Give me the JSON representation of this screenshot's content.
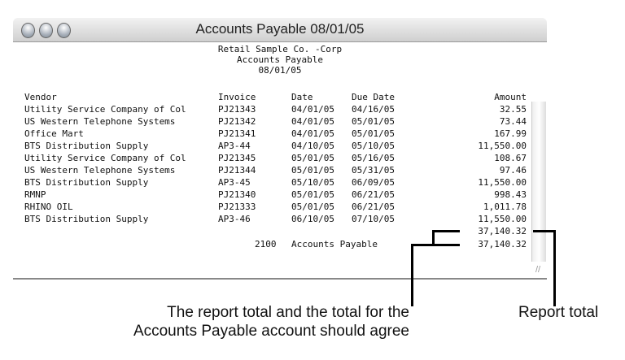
{
  "window": {
    "title": "Accounts Payable 08/01/05"
  },
  "report": {
    "company": "Retail Sample Co. -Corp",
    "name": "Accounts Payable",
    "date": "08/01/05"
  },
  "columns": [
    "Vendor",
    "Invoice",
    "Date",
    "Due Date",
    "Amount"
  ],
  "rows": [
    [
      "Utility Service Company of Col",
      "PJ21343",
      "04/01/05",
      "04/16/05",
      "32.55"
    ],
    [
      "US Western Telephone Systems",
      "PJ21342",
      "04/01/05",
      "05/01/05",
      "73.44"
    ],
    [
      "Office Mart",
      "PJ21341",
      "04/01/05",
      "05/01/05",
      "167.99"
    ],
    [
      "BTS Distribution Supply",
      "AP3-44",
      "04/10/05",
      "05/10/05",
      "11,550.00"
    ],
    [
      "Utility Service Company of Col",
      "PJ21345",
      "05/01/05",
      "05/16/05",
      "108.67"
    ],
    [
      "US Western Telephone Systems",
      "PJ21344",
      "05/01/05",
      "05/31/05",
      "97.46"
    ],
    [
      "BTS Distribution Supply",
      "AP3-45",
      "05/10/05",
      "06/09/05",
      "11,550.00"
    ],
    [
      "RMNP",
      "PJ21340",
      "05/01/05",
      "06/21/05",
      "998.43"
    ],
    [
      "RHINO OIL",
      "PJ21333",
      "05/01/05",
      "06/21/05",
      "1,011.78"
    ],
    [
      "BTS Distribution Supply",
      "AP3-46",
      "06/10/05",
      "07/10/05",
      "11,550.00"
    ]
  ],
  "totals": {
    "report_total": "37,140.32",
    "account_number": "2100",
    "account_name": "Accounts Payable",
    "account_total": "37,140.32"
  },
  "annotations": {
    "left_line1": "The report total and the total for the",
    "left_line2": "Accounts Payable account should agree",
    "right": "Report total"
  }
}
